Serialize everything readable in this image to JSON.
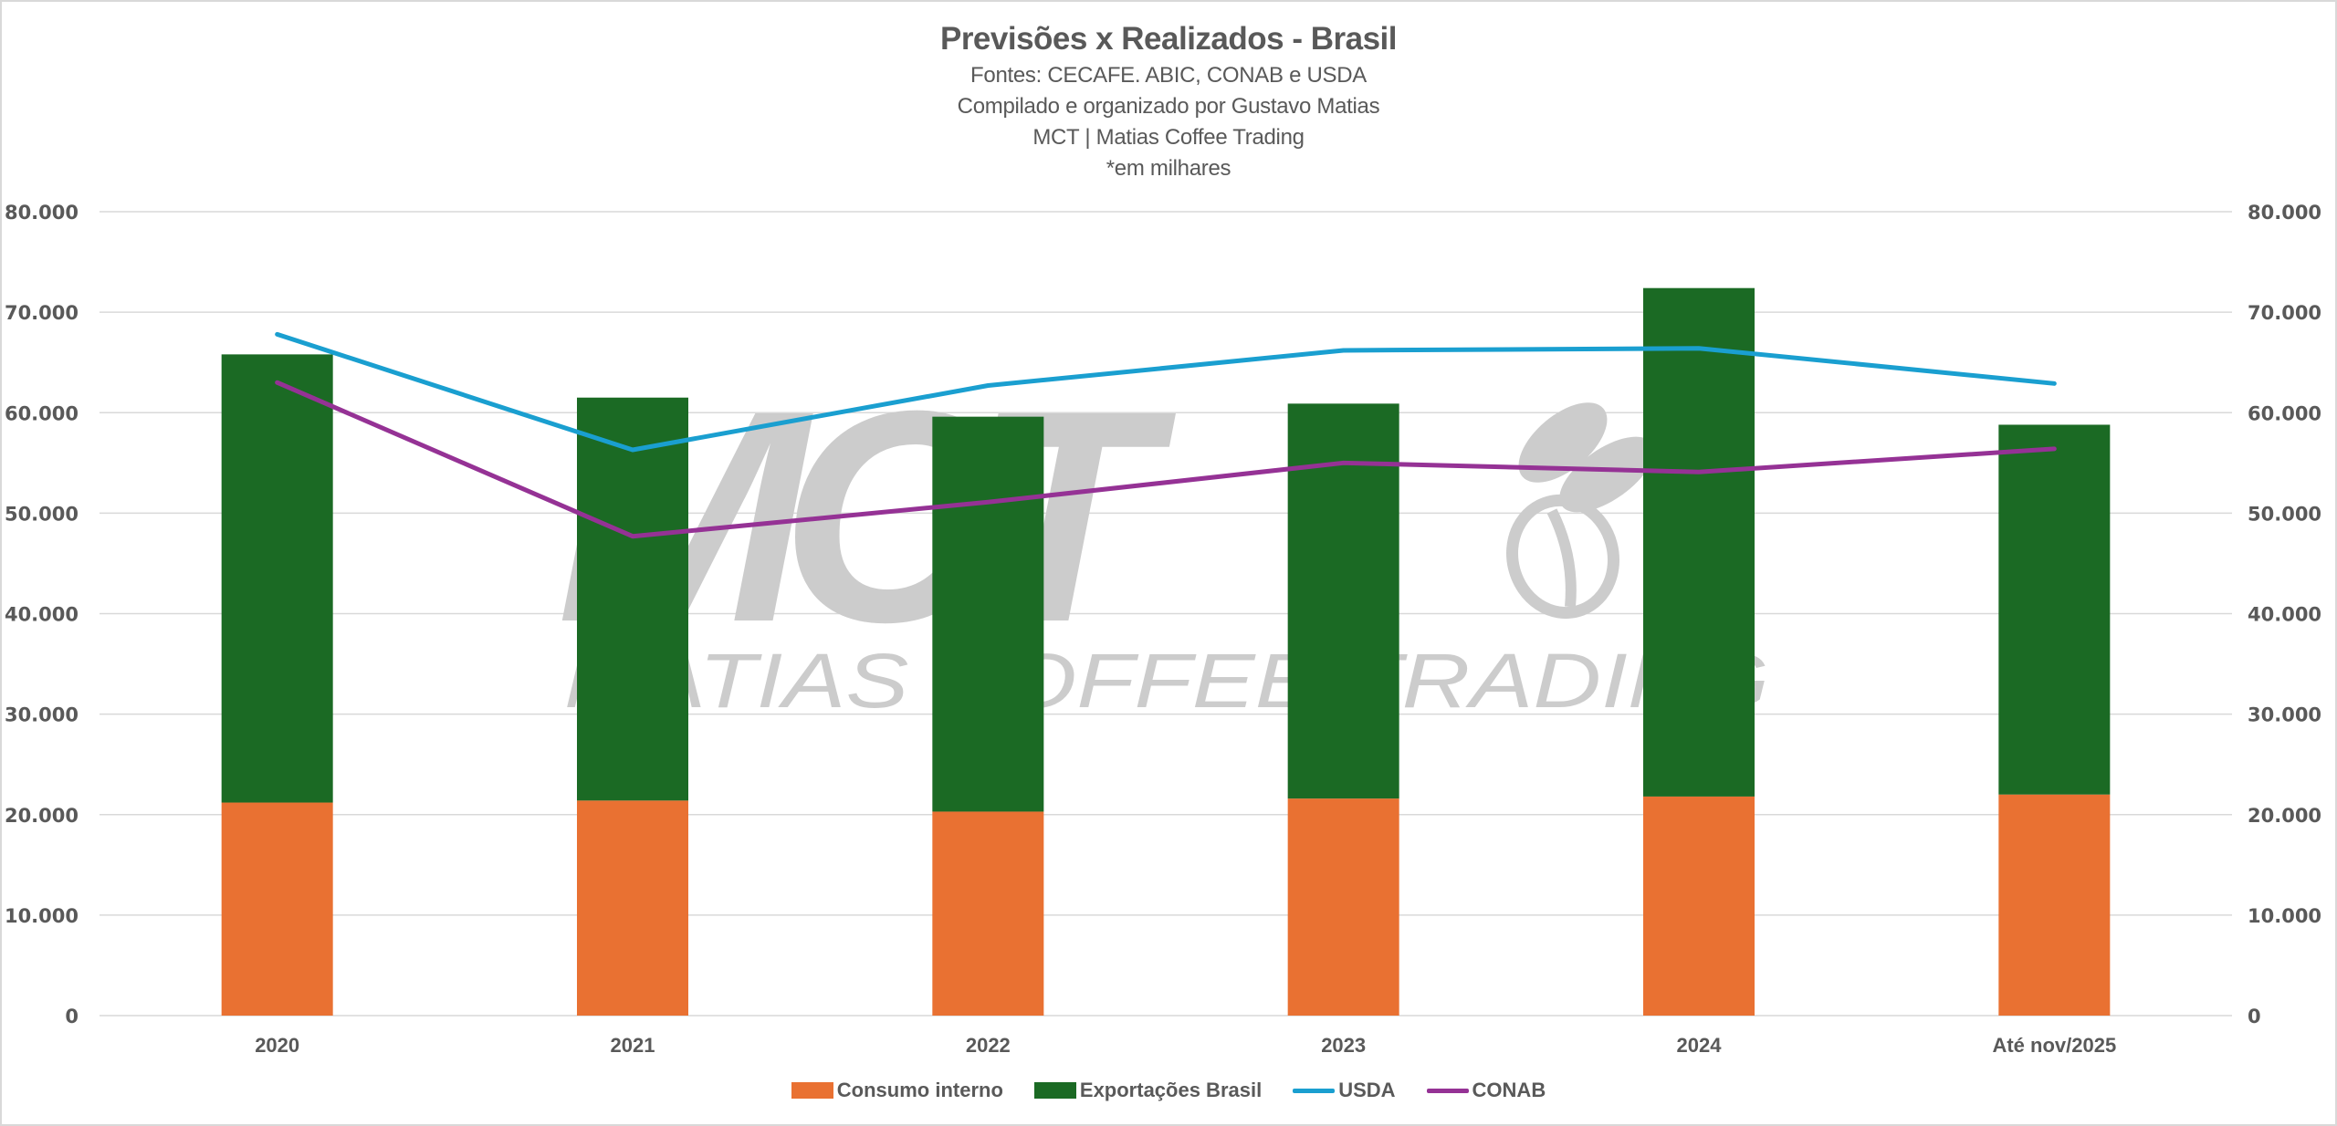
{
  "chart_data": {
    "type": "bar",
    "subtype": "stacked-bar-with-lines",
    "title": "Previsões x Realizados - Brasil",
    "subtitles": [
      "Fontes: CECAFE. ABIC, CONAB e USDA",
      "Compilado e organizado por Gustavo Matias",
      "MCT | Matias Coffee Trading",
      "*em milhares"
    ],
    "categories": [
      "2020",
      "2021",
      "2022",
      "2023",
      "2024",
      "Até nov/2025"
    ],
    "series": [
      {
        "name": "Consumo interno",
        "kind": "stacked-bar",
        "color": "#E97132",
        "values": [
          21200,
          21400,
          20300,
          21600,
          21800,
          22000
        ]
      },
      {
        "name": "Exportações Brasil",
        "kind": "stacked-bar",
        "color": "#1B6A24",
        "values": [
          44600,
          40100,
          39300,
          39300,
          50600,
          36800
        ]
      },
      {
        "name": "USDA",
        "kind": "line",
        "color": "#1A9FD0",
        "values": [
          67800,
          56300,
          62700,
          66200,
          66400,
          62900
        ]
      },
      {
        "name": "CONAB",
        "kind": "line",
        "color": "#953295",
        "values": [
          63000,
          47700,
          51100,
          55000,
          54100,
          56400
        ]
      }
    ],
    "xlabel": "",
    "ylabel": "",
    "ylim": [
      0,
      80000
    ],
    "y_ticks": [
      0,
      10000,
      20000,
      30000,
      40000,
      50000,
      60000,
      70000,
      80000
    ],
    "y_tick_labels": [
      "0",
      "10.000",
      "20.000",
      "30.000",
      "40.000",
      "50.000",
      "60.000",
      "70.000",
      "80.000"
    ],
    "secondary_y_tick_labels": [
      "0",
      "10.000",
      "20.000",
      "30.000",
      "40.000",
      "50.000",
      "60.000",
      "70.000",
      "80.000"
    ],
    "grid": true,
    "legend_position": "bottom-center"
  },
  "watermark": {
    "logo": "MCT",
    "tagline": "MATIAS COFFEE TRADING",
    "icon": "coffee-beans-icon"
  }
}
